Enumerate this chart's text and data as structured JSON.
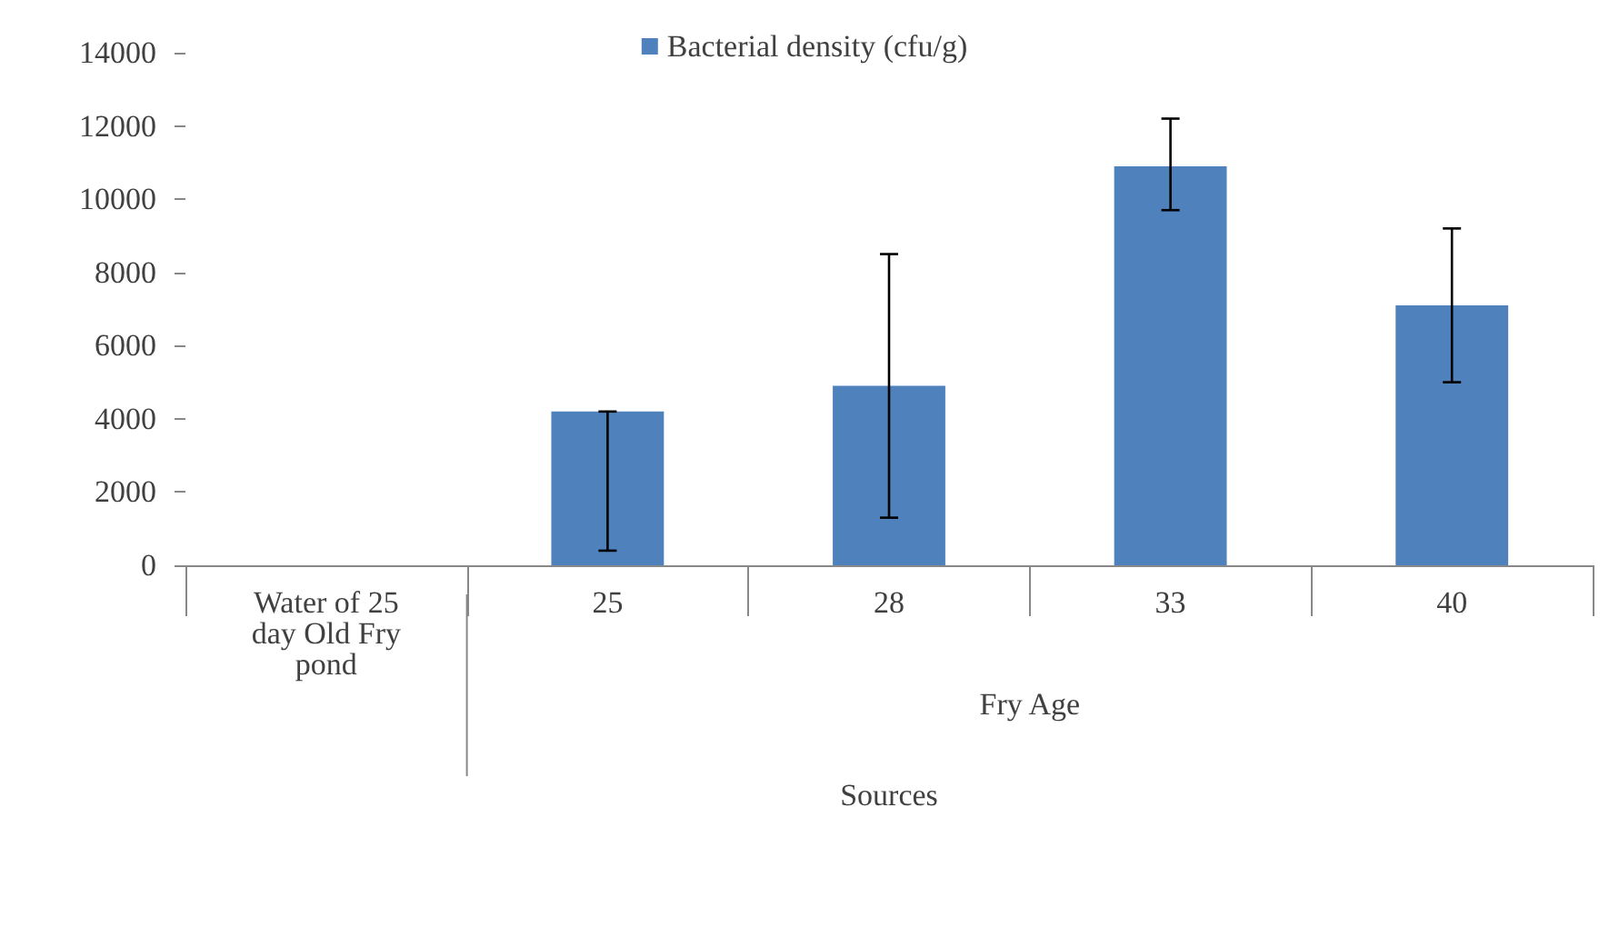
{
  "chart_data": {
    "type": "bar",
    "xlabel": "Sources",
    "categories": [
      "Water of 25 day Old Fry pond",
      "25",
      "28",
      "33",
      "40"
    ],
    "series": [
      {
        "name": "Bacterial density (cfu/g)",
        "color": "#4f81bd",
        "values": [
          null,
          4200,
          4900,
          10900,
          7100
        ],
        "errors": [
          null,
          [
            400,
            4200
          ],
          [
            1300,
            8500
          ],
          [
            9700,
            12200
          ],
          [
            5000,
            9200
          ]
        ]
      }
    ],
    "annotations": [
      "Fry Age"
    ],
    "ylim": [
      0,
      14000
    ],
    "yticks": [
      0,
      2000,
      4000,
      6000,
      8000,
      10000,
      12000,
      14000
    ],
    "grid": false,
    "legend": "top"
  }
}
